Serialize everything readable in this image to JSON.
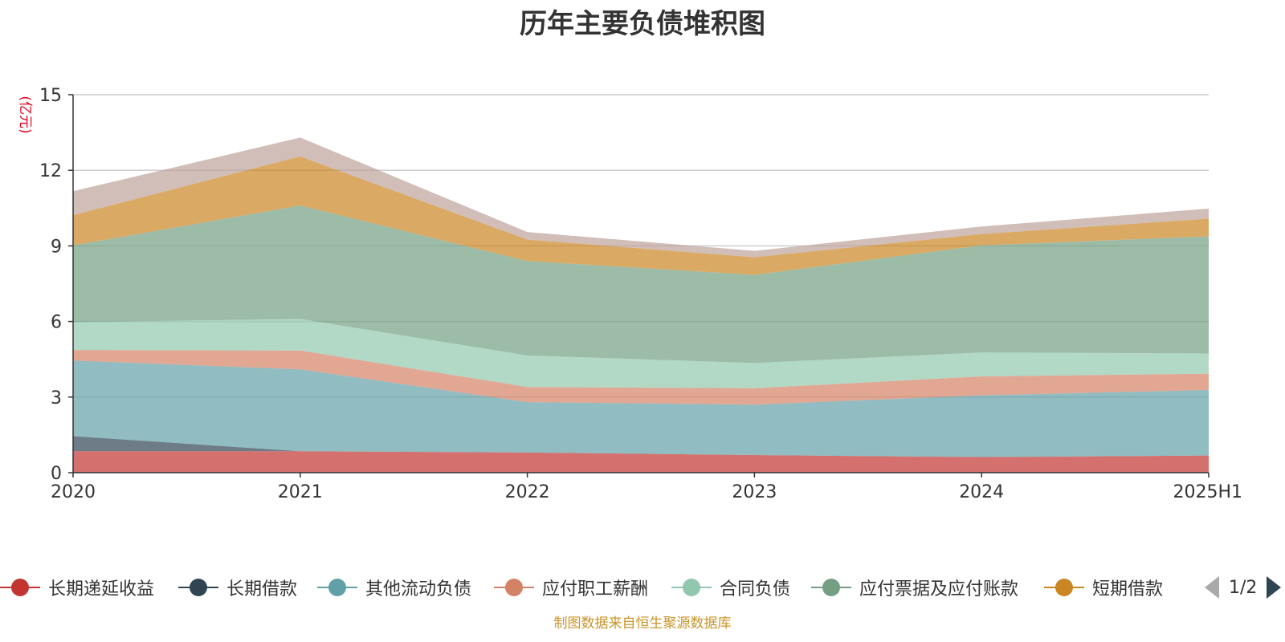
{
  "title": "历年主要负债堆积图",
  "source": "制图数据来自恒生聚源数据库",
  "legend_page": "1/2",
  "chart_data": {
    "type": "area",
    "stacked": true,
    "title": "历年主要负债堆积图",
    "ylabel": "(亿元)",
    "xlabel": "",
    "ylim": [
      0,
      15
    ],
    "yticks": [
      0,
      3,
      6,
      9,
      12,
      15
    ],
    "categories": [
      "2020",
      "2021",
      "2022",
      "2023",
      "2024",
      "2025H1"
    ],
    "grid": true,
    "legend_position": "bottom",
    "series": [
      {
        "name": "长期递延收益",
        "color": "#c23531",
        "values": [
          0.85,
          0.85,
          0.8,
          0.7,
          0.62,
          0.68
        ]
      },
      {
        "name": "长期借款",
        "color": "#2f4554",
        "values": [
          0.6,
          0,
          0,
          0,
          0,
          0
        ]
      },
      {
        "name": "其他流动负债",
        "color": "#61a0a8",
        "values": [
          3.0,
          3.25,
          2.0,
          2.0,
          2.45,
          2.6
        ]
      },
      {
        "name": "应付职工薪酬",
        "color": "#d48265",
        "values": [
          0.42,
          0.75,
          0.6,
          0.65,
          0.75,
          0.65
        ]
      },
      {
        "name": "合同负债",
        "color": "#91c7ae",
        "values": [
          1.1,
          1.25,
          1.25,
          1.0,
          0.95,
          0.8
        ]
      },
      {
        "name": "应付票据及应付账款",
        "color": "#749f83",
        "values": [
          3.05,
          4.5,
          3.75,
          3.5,
          4.25,
          4.65
        ]
      },
      {
        "name": "短期借款",
        "color": "#ca8622",
        "values": [
          1.2,
          1.95,
          0.85,
          0.7,
          0.45,
          0.7
        ]
      },
      {
        "name": "",
        "color": "#bda29a",
        "values": [
          0.95,
          0.75,
          0.3,
          0.25,
          0.3,
          0.4
        ]
      }
    ]
  }
}
